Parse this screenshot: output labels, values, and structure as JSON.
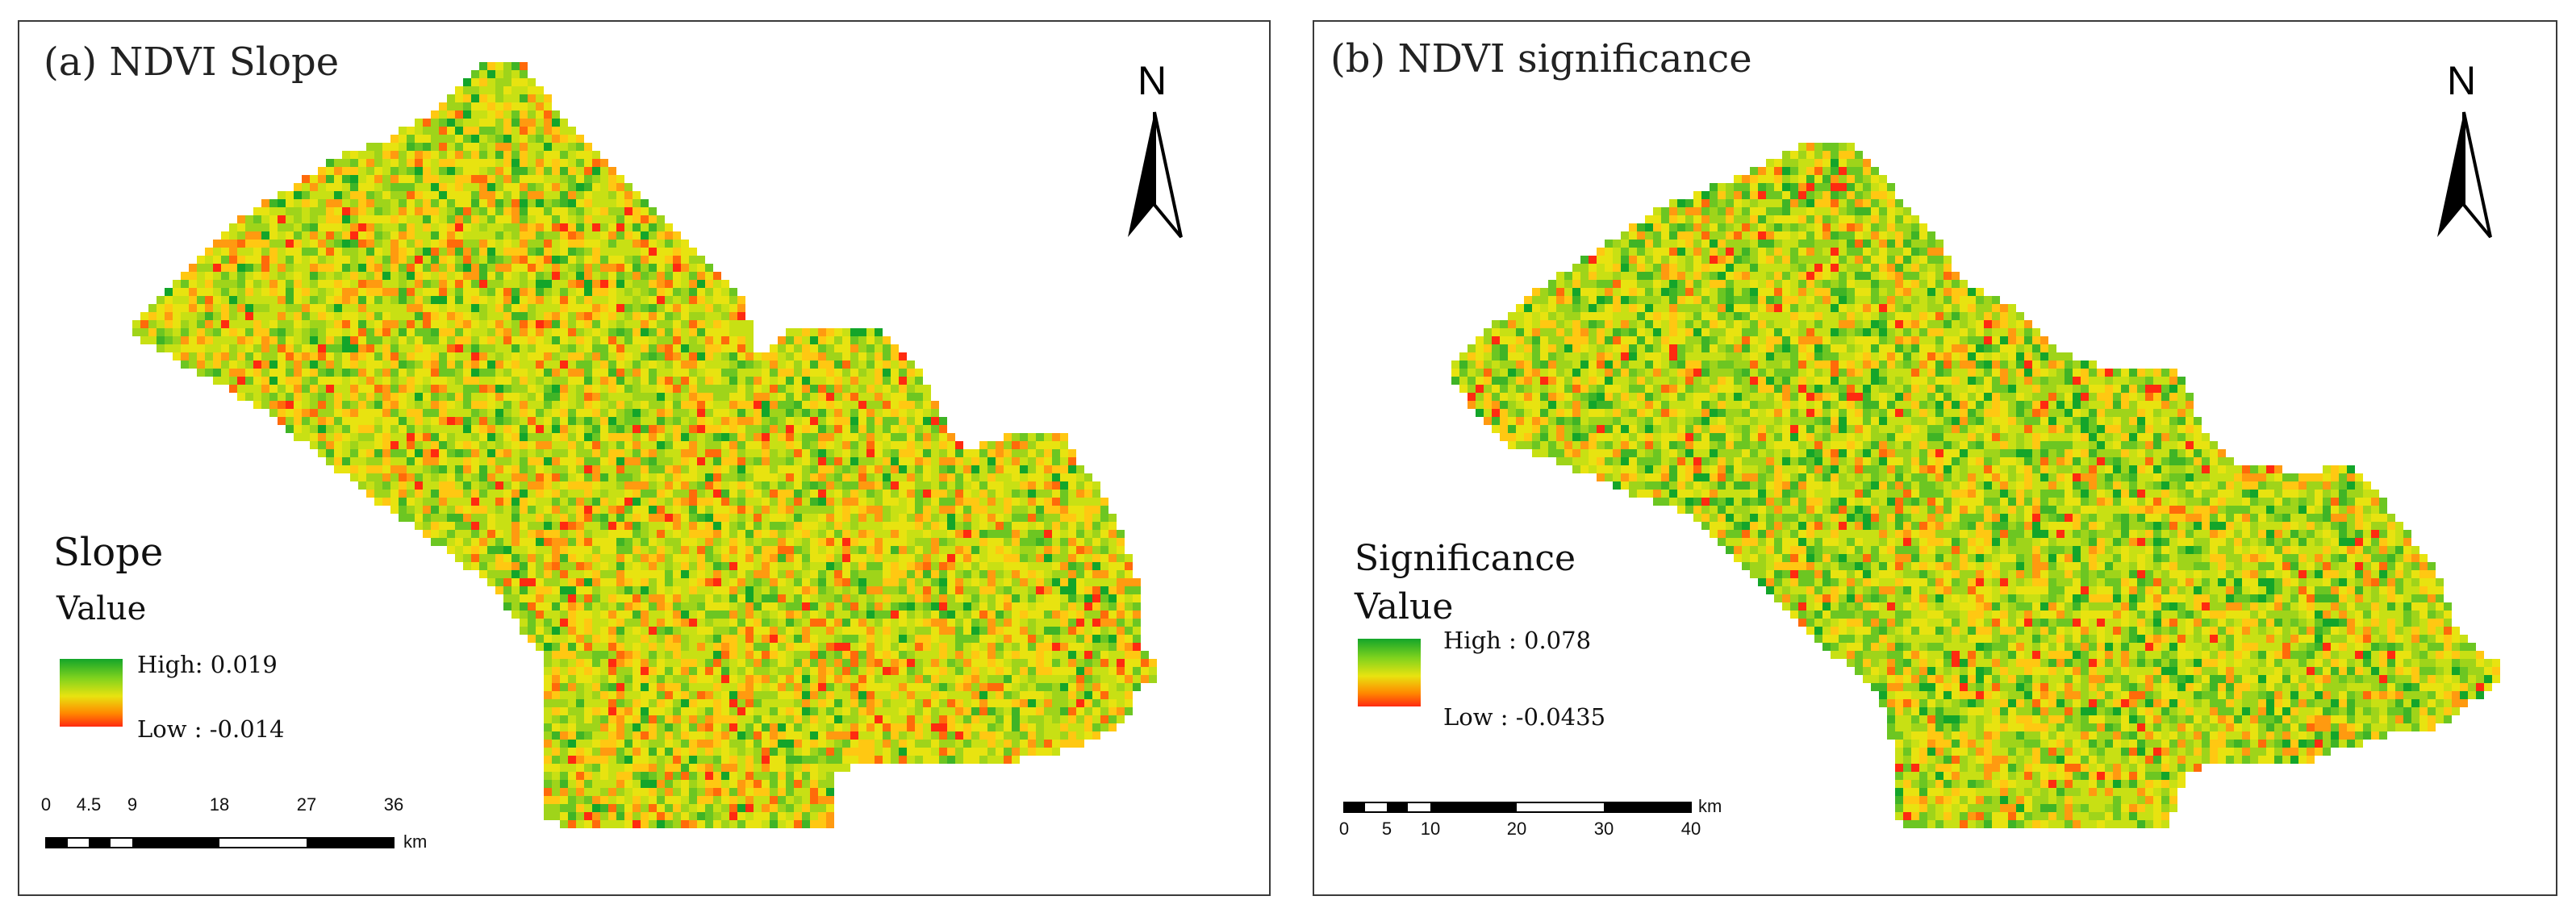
{
  "colors": {
    "high": "#13a52a",
    "mid": "#e8e310",
    "low": "#ff2a10"
  },
  "panels": [
    {
      "id": "a",
      "title": "(a) NDVI Slope",
      "north_label": "N",
      "legend": {
        "title": "Slope",
        "subtitle": "Value",
        "high": "High: 0.019",
        "low": "Low : -0.014"
      },
      "scale": {
        "ticks": [
          "0",
          "4.5",
          "9",
          "18",
          "27",
          "36"
        ],
        "unit": "km"
      },
      "seed": 17,
      "green_bias": 0.45
    },
    {
      "id": "b",
      "title": "(b) NDVI significance",
      "north_label": "N",
      "legend": {
        "title": "Significance",
        "subtitle": "Value",
        "high": "High : 0.078",
        "low": "Low : -0.0435"
      },
      "scale": {
        "ticks": [
          "0",
          "5",
          "10",
          "20",
          "30",
          "40"
        ],
        "unit": "km"
      },
      "seed": 91,
      "green_bias": 0.65
    }
  ]
}
